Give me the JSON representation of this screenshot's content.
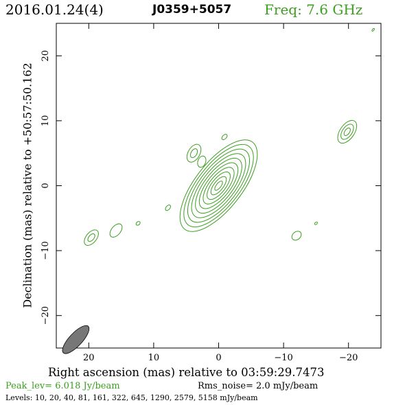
{
  "header": {
    "date": "2016.01.24(4)",
    "source": "J0359+5057",
    "freq": "Freq: 7.6 GHz"
  },
  "axes": {
    "xlabel": "Right ascension (mas) relative to 03:59:29.7473",
    "ylabel": "Declination (mas) relative to +50:57:50.162",
    "xlim": [
      25,
      -25
    ],
    "ylim": [
      -25,
      25
    ],
    "xticks": [
      20,
      10,
      0,
      -10,
      -20
    ],
    "xtick_labels": [
      "20",
      "10",
      "0",
      "−10",
      "−20"
    ],
    "yticks": [
      20,
      10,
      0,
      -10,
      -20
    ],
    "ytick_labels": [
      "20",
      "10",
      "0",
      "−10",
      "−20"
    ]
  },
  "footer": {
    "peak": "Peak_lev=  6.018 Jy/beam",
    "rms": "Rms_noise=  2.0 mJy/beam",
    "levels": "Levels:  10,  20,  40,  81, 161, 322, 645, 1290, 2579, 5158 mJy/beam"
  },
  "colors": {
    "contour": "#3aa01e",
    "beam": "#777777"
  },
  "chart_data": {
    "type": "contour",
    "peak_jy_per_beam": 6.018,
    "rms_noise_mjy_per_beam": 2.0,
    "contour_levels_mjy": [
      10,
      20,
      40,
      81,
      161,
      322,
      645,
      1290,
      2579,
      5158
    ],
    "beam": {
      "x": 22,
      "y": -23.7,
      "major": 2.8,
      "minor": 1.0,
      "pa_deg": 47
    },
    "components": [
      {
        "x": 0,
        "y": 0,
        "levels": 10,
        "major": 8.5,
        "minor": 3.6,
        "pa_deg": 52
      },
      {
        "x": -19.8,
        "y": 8.3,
        "levels": 3,
        "major": 2.0,
        "minor": 1.1,
        "pa_deg": 55
      },
      {
        "x": 3.8,
        "y": 5.0,
        "levels": 2,
        "major": 1.5,
        "minor": 0.9,
        "pa_deg": 60
      },
      {
        "x": 2.6,
        "y": 3.7,
        "levels": 1,
        "major": 0.9,
        "minor": 0.6,
        "pa_deg": 70
      },
      {
        "x": -0.9,
        "y": 7.5,
        "levels": 1,
        "major": 0.5,
        "minor": 0.3,
        "pa_deg": 45
      },
      {
        "x": 19.6,
        "y": -8.0,
        "levels": 2,
        "major": 1.4,
        "minor": 0.8,
        "pa_deg": 50
      },
      {
        "x": 15.8,
        "y": -6.9,
        "levels": 1,
        "major": 1.2,
        "minor": 0.7,
        "pa_deg": 50
      },
      {
        "x": 12.4,
        "y": -5.8,
        "levels": 1,
        "major": 0.35,
        "minor": 0.25,
        "pa_deg": 40
      },
      {
        "x": 7.8,
        "y": -3.4,
        "levels": 1,
        "major": 0.5,
        "minor": 0.3,
        "pa_deg": 50
      },
      {
        "x": -12.0,
        "y": -7.7,
        "levels": 1,
        "major": 0.8,
        "minor": 0.6,
        "pa_deg": 40
      },
      {
        "x": -15.0,
        "y": -5.8,
        "levels": 1,
        "major": 0.25,
        "minor": 0.15,
        "pa_deg": 40
      },
      {
        "x": -23.8,
        "y": 24.0,
        "levels": 1,
        "major": 0.25,
        "minor": 0.12,
        "pa_deg": 50
      }
    ]
  }
}
